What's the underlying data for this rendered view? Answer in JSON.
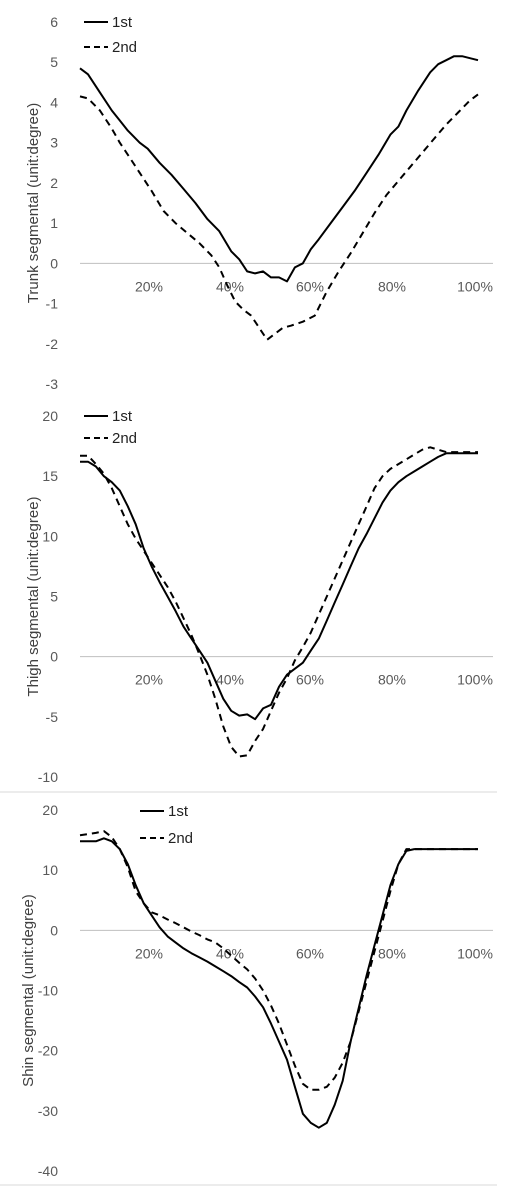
{
  "colors": {
    "series": "#000000",
    "axis": "#bfbfbf",
    "text": "#595959",
    "separator": "#d9d9d9"
  },
  "chart_data": [
    {
      "type": "line",
      "ylabel": "Trunk segmental  (unit:degree)",
      "ylim": [
        -3,
        6
      ],
      "yticks": [
        "6",
        "5",
        "4",
        "3",
        "2",
        "1",
        "0",
        "-1",
        "-2",
        "-3"
      ],
      "xlim": [
        0,
        100
      ],
      "xticks": [
        "20%",
        "40%",
        "60%",
        "80%",
        "100%"
      ],
      "legend": [
        "1st",
        "2nd"
      ],
      "legend_position": "top-left",
      "grid": false,
      "series": [
        {
          "name": "1st",
          "style": "solid",
          "x": [
            0,
            2,
            5,
            8,
            10,
            12,
            15,
            17,
            20,
            23,
            26,
            29,
            32,
            35,
            38,
            40,
            42,
            44,
            46,
            48,
            50,
            52,
            54,
            56,
            58,
            60,
            63,
            66,
            69,
            72,
            75,
            78,
            80,
            82,
            85,
            88,
            90,
            92,
            94,
            96,
            98,
            100
          ],
          "y": [
            4.85,
            4.7,
            4.25,
            3.8,
            3.55,
            3.3,
            3.0,
            2.85,
            2.5,
            2.2,
            1.85,
            1.5,
            1.1,
            0.8,
            0.3,
            0.1,
            -0.2,
            -0.25,
            -0.2,
            -0.35,
            -0.35,
            -0.45,
            -0.1,
            0.0,
            0.35,
            0.6,
            1.0,
            1.4,
            1.8,
            2.25,
            2.7,
            3.2,
            3.4,
            3.8,
            4.3,
            4.75,
            4.95,
            5.05,
            5.15,
            5.15,
            5.1,
            5.05
          ]
        },
        {
          "name": "2nd",
          "style": "dashed",
          "x": [
            0,
            2,
            5,
            8,
            10,
            12,
            15,
            18,
            21,
            24,
            27,
            30,
            33,
            35,
            37,
            39,
            41,
            43,
            45,
            47,
            49,
            51,
            53,
            56,
            59,
            62,
            65,
            68,
            71,
            74,
            77,
            80,
            83,
            86,
            89,
            92,
            95,
            98,
            100
          ],
          "y": [
            4.15,
            4.1,
            3.8,
            3.35,
            3.0,
            2.7,
            2.25,
            1.8,
            1.3,
            1.0,
            0.75,
            0.5,
            0.2,
            -0.1,
            -0.55,
            -0.95,
            -1.15,
            -1.3,
            -1.6,
            -1.9,
            -1.75,
            -1.6,
            -1.55,
            -1.45,
            -1.3,
            -0.7,
            -0.2,
            0.25,
            0.75,
            1.25,
            1.7,
            2.05,
            2.4,
            2.75,
            3.1,
            3.45,
            3.75,
            4.05,
            4.2
          ]
        }
      ]
    },
    {
      "type": "line",
      "ylabel": "Thigh segmental  (unit:degree)",
      "ylim": [
        -10,
        20
      ],
      "yticks": [
        "20",
        "15",
        "10",
        "5",
        "0",
        "-5",
        "-10"
      ],
      "xlim": [
        0,
        100
      ],
      "xticks": [
        "20%",
        "40%",
        "60%",
        "80%",
        "100%"
      ],
      "legend": [
        "1st",
        "2nd"
      ],
      "legend_position": "top-left",
      "grid": false,
      "series": [
        {
          "name": "1st",
          "style": "solid",
          "x": [
            0,
            2,
            4,
            6,
            8,
            10,
            12,
            14,
            16,
            18,
            20,
            22,
            24,
            26,
            28,
            30,
            32,
            34,
            36,
            38,
            40,
            42,
            44,
            46,
            48,
            50,
            52,
            54,
            56,
            58,
            60,
            62,
            64,
            66,
            68,
            70,
            72,
            74,
            76,
            78,
            80,
            82,
            84,
            86,
            88,
            90,
            92,
            94,
            96,
            98,
            100
          ],
          "y": [
            16.2,
            16.2,
            15.8,
            15.0,
            14.5,
            13.8,
            12.5,
            11.0,
            9.0,
            7.5,
            6.2,
            5.0,
            3.8,
            2.5,
            1.5,
            0.5,
            -0.5,
            -2.0,
            -3.5,
            -4.5,
            -4.9,
            -4.8,
            -5.2,
            -4.3,
            -4.0,
            -2.5,
            -1.5,
            -1.0,
            -0.5,
            0.5,
            1.5,
            3.0,
            4.5,
            6.0,
            7.5,
            9.0,
            10.2,
            11.5,
            12.8,
            13.8,
            14.5,
            15.0,
            15.4,
            15.8,
            16.2,
            16.6,
            16.9,
            16.9,
            16.9,
            16.9,
            16.9
          ],
          "x_override": [
            0,
            2,
            4,
            5,
            6,
            8,
            10,
            12,
            14,
            16,
            18,
            20,
            22,
            24,
            26,
            28,
            30,
            32,
            34,
            36,
            38,
            40,
            42,
            44,
            46,
            48,
            50,
            52,
            54,
            56,
            58,
            60,
            62,
            64,
            66,
            68,
            70,
            72,
            74,
            76,
            78,
            80,
            82,
            84,
            86,
            88,
            90,
            92,
            94,
            96,
            100
          ],
          "note": ""
        },
        {
          "name": "2nd",
          "style": "dashed",
          "x": [
            0,
            2,
            4,
            6,
            8,
            10,
            12,
            14,
            16,
            18,
            20,
            22,
            24,
            26,
            28,
            30,
            32,
            34,
            36,
            38,
            40,
            42,
            44,
            46,
            48,
            50,
            52,
            54,
            56,
            58,
            60,
            62,
            64,
            66,
            68,
            70,
            72,
            74,
            76,
            78,
            80,
            82,
            84,
            86,
            88,
            90,
            92,
            94,
            96,
            98,
            100
          ],
          "y": [
            16.7,
            16.7,
            16.0,
            15.2,
            14.0,
            12.5,
            11.0,
            9.8,
            8.8,
            7.8,
            6.8,
            5.8,
            4.6,
            3.2,
            1.8,
            0.2,
            -1.5,
            -3.5,
            -5.8,
            -7.5,
            -8.3,
            -8.2,
            -7.0,
            -6.0,
            -4.5,
            -3.0,
            -1.8,
            -0.3,
            0.8,
            2.0,
            3.5,
            5.0,
            6.5,
            8.0,
            9.5,
            11.0,
            12.5,
            14.0,
            15.0,
            15.6,
            16.0,
            16.4,
            16.8,
            17.2,
            17.4,
            17.2,
            17.0,
            17.0,
            17.0,
            17.0,
            17.0
          ]
        }
      ]
    },
    {
      "type": "line",
      "ylabel": "Shin segmental  (unit:degree)",
      "ylim": [
        -40,
        20
      ],
      "yticks": [
        "20",
        "10",
        "0",
        "-10",
        "-20",
        "-30",
        "-40"
      ],
      "xlim": [
        0,
        100
      ],
      "xticks": [
        "20%",
        "40%",
        "60%",
        "80%",
        "100%"
      ],
      "legend": [
        "1st",
        "2nd"
      ],
      "legend_position": "top-left",
      "grid": false,
      "series": [
        {
          "name": "1st",
          "style": "solid",
          "x": [
            0,
            2,
            4,
            6,
            8,
            10,
            12,
            14,
            16,
            18,
            20,
            22,
            24,
            26,
            28,
            30,
            32,
            34,
            36,
            38,
            40,
            42,
            44,
            46,
            48,
            50,
            52,
            54,
            56,
            58,
            60,
            62,
            64,
            66,
            68,
            70,
            72,
            74,
            76,
            78,
            80,
            82,
            84,
            86,
            88,
            90,
            92,
            94,
            96,
            98,
            100
          ],
          "y": [
            14.8,
            14.8,
            14.8,
            15.3,
            14.8,
            13.5,
            11.0,
            7.5,
            4.5,
            2.5,
            0.5,
            -1.0,
            -2.0,
            -3.0,
            -3.8,
            -4.5,
            -5.2,
            -6.0,
            -6.8,
            -7.6,
            -8.6,
            -9.5,
            -11.0,
            -12.8,
            -15.5,
            -18.5,
            -21.5,
            -26.0,
            -30.5,
            -32.0,
            -32.8,
            -32.0,
            -29.0,
            -25.0,
            -18.5,
            -13.0,
            -7.5,
            -2.5,
            2.5,
            7.5,
            11.0,
            13.2,
            13.5,
            13.5,
            13.5,
            13.5,
            13.5,
            13.5,
            13.5,
            13.5,
            13.5
          ]
        },
        {
          "name": "2nd",
          "style": "dashed",
          "x": [
            0,
            2,
            4,
            6,
            8,
            10,
            12,
            14,
            16,
            18,
            20,
            22,
            24,
            26,
            28,
            30,
            32,
            34,
            36,
            38,
            40,
            42,
            44,
            46,
            48,
            50,
            52,
            54,
            56,
            58,
            60,
            62,
            64,
            66,
            68,
            70,
            72,
            74,
            76,
            78,
            80,
            82,
            84,
            86,
            88,
            90,
            92,
            94,
            96,
            98,
            100
          ],
          "y": [
            15.8,
            16.0,
            16.2,
            16.5,
            15.5,
            13.5,
            10.5,
            6.5,
            4.5,
            3.0,
            2.5,
            1.8,
            1.2,
            0.5,
            -0.2,
            -0.8,
            -1.5,
            -2.0,
            -3.0,
            -4.2,
            -5.4,
            -6.5,
            -8.0,
            -10.0,
            -12.5,
            -15.5,
            -19.0,
            -22.5,
            -25.5,
            -26.5,
            -26.5,
            -26.0,
            -24.5,
            -22.0,
            -18.5,
            -13.5,
            -8.5,
            -3.5,
            1.5,
            6.5,
            11.0,
            13.5,
            13.5,
            13.5,
            13.5,
            13.5,
            13.5,
            13.5,
            13.5,
            13.5,
            13.5
          ]
        }
      ]
    }
  ]
}
